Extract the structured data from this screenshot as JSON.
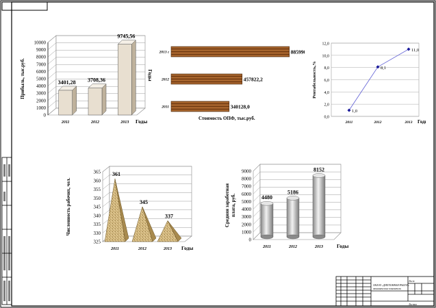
{
  "sheet": {
    "stamp_text_1": "ОАООО «ДИПЛОМНАЯ РАБОТА»",
    "stamp_text_2": "экономические показатели",
    "stamp_sheet": "Лист",
    "stamp_sheets": "Листов"
  },
  "colors": {
    "frame": "#000000",
    "line_series": "#6a6ad8",
    "marker": "#1a1a9a",
    "bar_3d_face": "#e8dfd0",
    "cylinder": "#c8c8c8"
  },
  "chart_data": [
    {
      "id": "profit",
      "type": "bar",
      "categories": [
        "2011",
        "2012",
        "2013"
      ],
      "values": [
        3401.28,
        3708.36,
        9745.56
      ],
      "value_labels": [
        "3401,28",
        "3708,36",
        "9745,56"
      ],
      "ylabel": "Прибыль, тыс.руб.",
      "xlabel": "Годы",
      "yticks": [
        "0",
        "1000",
        "2000",
        "3000",
        "4000",
        "5000",
        "6000",
        "7000",
        "8000",
        "9000",
        "10000"
      ],
      "ylim": [
        0,
        10000
      ]
    },
    {
      "id": "opf",
      "type": "bar",
      "orientation": "horizontal",
      "categories": [
        "2013 г",
        "2012",
        "2011"
      ],
      "values": [
        885990.9,
        457822.2,
        340128.0
      ],
      "value_labels": [
        "885990,9",
        "457822,2",
        "340128,0"
      ],
      "ylabel": "Годы",
      "xlabel": "Стоимость ОПФ, тыс.руб.",
      "xlim": [
        0,
        900000
      ]
    },
    {
      "id": "profitability",
      "type": "line",
      "categories": [
        "2011",
        "2012",
        "2013"
      ],
      "values": [
        1.0,
        8.1,
        11.0
      ],
      "value_labels": [
        "1,0",
        "8,1",
        "11,0"
      ],
      "ylabel": "Рентабельность,%",
      "xlabel": "Годы",
      "yticks": [
        "0,0",
        "2,0",
        "4,0",
        "6,0",
        "8,0",
        "10,0",
        "12,0"
      ],
      "ylim": [
        0,
        12
      ]
    },
    {
      "id": "headcount",
      "type": "bar",
      "shape": "pyramid",
      "categories": [
        "2011",
        "2012",
        "2013"
      ],
      "values": [
        361,
        345,
        337
      ],
      "value_labels": [
        "361",
        "345",
        "337"
      ],
      "ylabel": "Численность рабочих, чел.",
      "xlabel": "Годы",
      "yticks": [
        "325",
        "330",
        "335",
        "340",
        "345",
        "350",
        "355",
        "360",
        "365"
      ],
      "ylim": [
        325,
        365
      ]
    },
    {
      "id": "salary",
      "type": "bar",
      "shape": "cylinder",
      "categories": [
        "2011",
        "2012",
        "2013"
      ],
      "values": [
        4480,
        5186,
        8152
      ],
      "value_labels": [
        "4480",
        "5186",
        "8152"
      ],
      "ylabel": "Средняя заработная плата, руб.",
      "xlabel": "Годы",
      "yticks": [
        "0",
        "1000",
        "2000",
        "3000",
        "4000",
        "5000",
        "6000",
        "7000",
        "8000",
        "9000"
      ],
      "ylim": [
        0,
        9000
      ]
    }
  ]
}
